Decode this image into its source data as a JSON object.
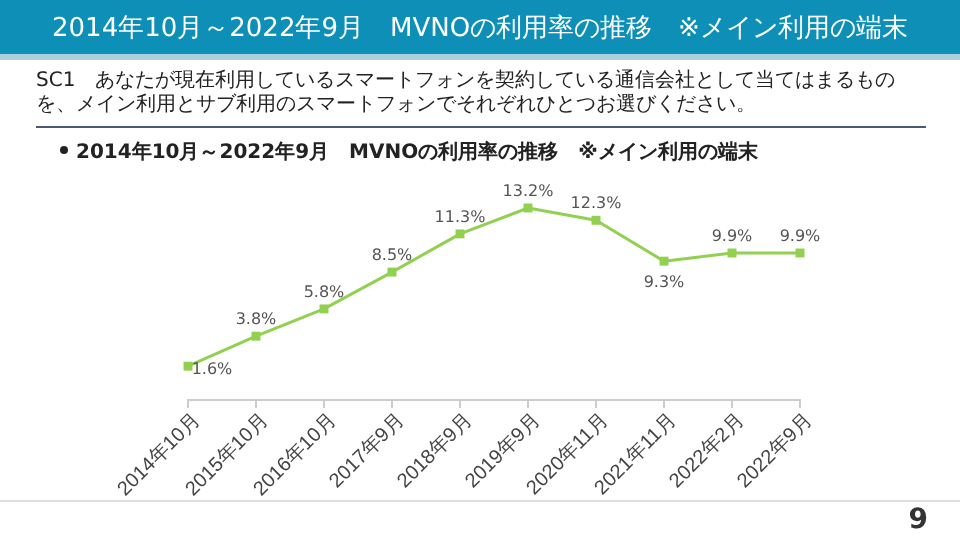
{
  "chart_data": {
    "type": "line",
    "title": "2014年10月～2022年9月　MVNOの利用率の推移　※メイン利用の端末",
    "subtitle": "2014年10月～2022年9月　MVNOの利用率の推移　※メイン利用の端末",
    "annotations": [
      "SC1　あなたが現在利用しているスマートフォンを契約している通信会社として当てはまるものを、メイン利用とサブ利用のスマートフォンでそれぞれひとつお選びください。",
      "9"
    ],
    "categories": [
      "2014年10月",
      "2015年10月",
      "2016年10月",
      "2017年9月",
      "2018年9月",
      "2019年9月",
      "2020年11月",
      "2021年11月",
      "2022年2月",
      "2022年9月"
    ],
    "series": [
      {
        "color": "#92d050",
        "values": [
          1.6,
          3.8,
          5.8,
          8.5,
          11.3,
          13.2,
          12.3,
          9.3,
          9.9,
          9.9
        ],
        "value_labels": [
          "1.6%",
          "3.8%",
          "5.8%",
          "8.5%",
          "11.3%",
          "13.2%",
          "12.3%",
          "9.3%",
          "9.9%",
          "9.9%"
        ]
      }
    ],
    "marker": "square",
    "line_style": "solid"
  }
}
